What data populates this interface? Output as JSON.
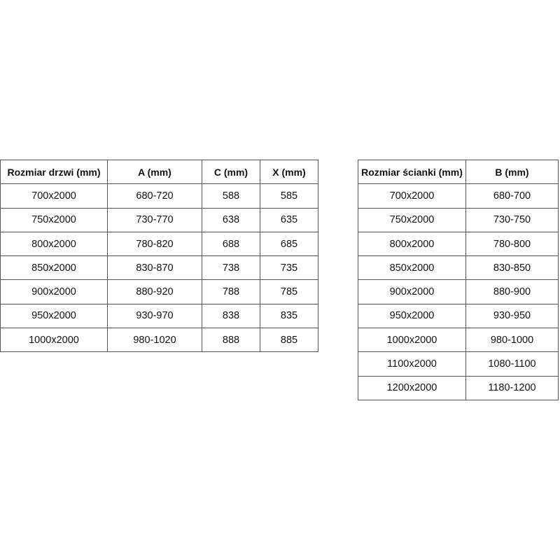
{
  "doors_table": {
    "headers": [
      "Rozmiar drzwi (mm)",
      "A (mm)",
      "C (mm)",
      "X (mm)"
    ],
    "rows": [
      [
        "700x2000",
        "680-720",
        "588",
        "585"
      ],
      [
        "750x2000",
        "730-770",
        "638",
        "635"
      ],
      [
        "800x2000",
        "780-820",
        "688",
        "685"
      ],
      [
        "850x2000",
        "830-870",
        "738",
        "735"
      ],
      [
        "900x2000",
        "880-920",
        "788",
        "785"
      ],
      [
        "950x2000",
        "930-970",
        "838",
        "835"
      ],
      [
        "1000x2000",
        "980-1020",
        "888",
        "885"
      ]
    ]
  },
  "wall_table": {
    "headers": [
      "Rozmiar ścianki (mm)",
      "B (mm)"
    ],
    "rows": [
      [
        "700x2000",
        "680-700"
      ],
      [
        "750x2000",
        "730-750"
      ],
      [
        "800x2000",
        "780-800"
      ],
      [
        "850x2000",
        "830-850"
      ],
      [
        "900x2000",
        "880-900"
      ],
      [
        "950x2000",
        "930-950"
      ],
      [
        "1000x2000",
        "980-1000"
      ],
      [
        "1100x2000",
        "1080-1100"
      ],
      [
        "1200x2000",
        "1180-1200"
      ]
    ]
  }
}
